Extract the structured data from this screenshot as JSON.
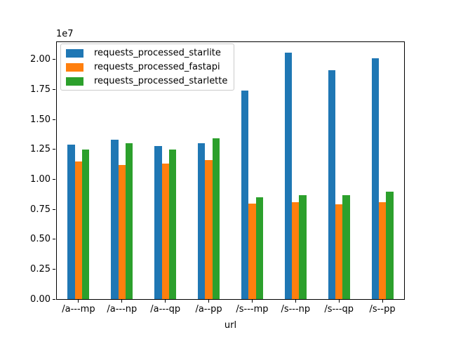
{
  "chart_data": {
    "type": "bar",
    "title": "",
    "xlabel": "url",
    "ylabel": "",
    "offset_label": "1e7",
    "categories": [
      "/a---mp",
      "/a---np",
      "/a---qp",
      "/a--pp",
      "/s---mp",
      "/s---np",
      "/s---qp",
      "/s--pp"
    ],
    "series": [
      {
        "name": "requests_processed_starlite",
        "color": "#1f77b4",
        "values": [
          12900000,
          13300000,
          12800000,
          13000000,
          17400000,
          20600000,
          19100000,
          20100000
        ]
      },
      {
        "name": "requests_processed_fastapi",
        "color": "#ff7f0e",
        "values": [
          11500000,
          11200000,
          11300000,
          11600000,
          8000000,
          8100000,
          7900000,
          8100000
        ]
      },
      {
        "name": "requests_processed_starlette",
        "color": "#2ca02c",
        "values": [
          12500000,
          13000000,
          12500000,
          13400000,
          8500000,
          8700000,
          8700000,
          9000000
        ]
      }
    ],
    "ylim": [
      0,
      21460000
    ],
    "yticks": [
      0,
      2500000,
      5000000,
      7500000,
      10000000,
      12500000,
      15000000,
      17500000,
      20000000
    ],
    "ytick_labels": [
      "0.00",
      "0.25",
      "0.50",
      "0.75",
      "1.00",
      "1.25",
      "1.50",
      "1.75",
      "2.00"
    ],
    "legend_position": "upper left",
    "grid": false,
    "bar_group_fraction": 0.5
  }
}
